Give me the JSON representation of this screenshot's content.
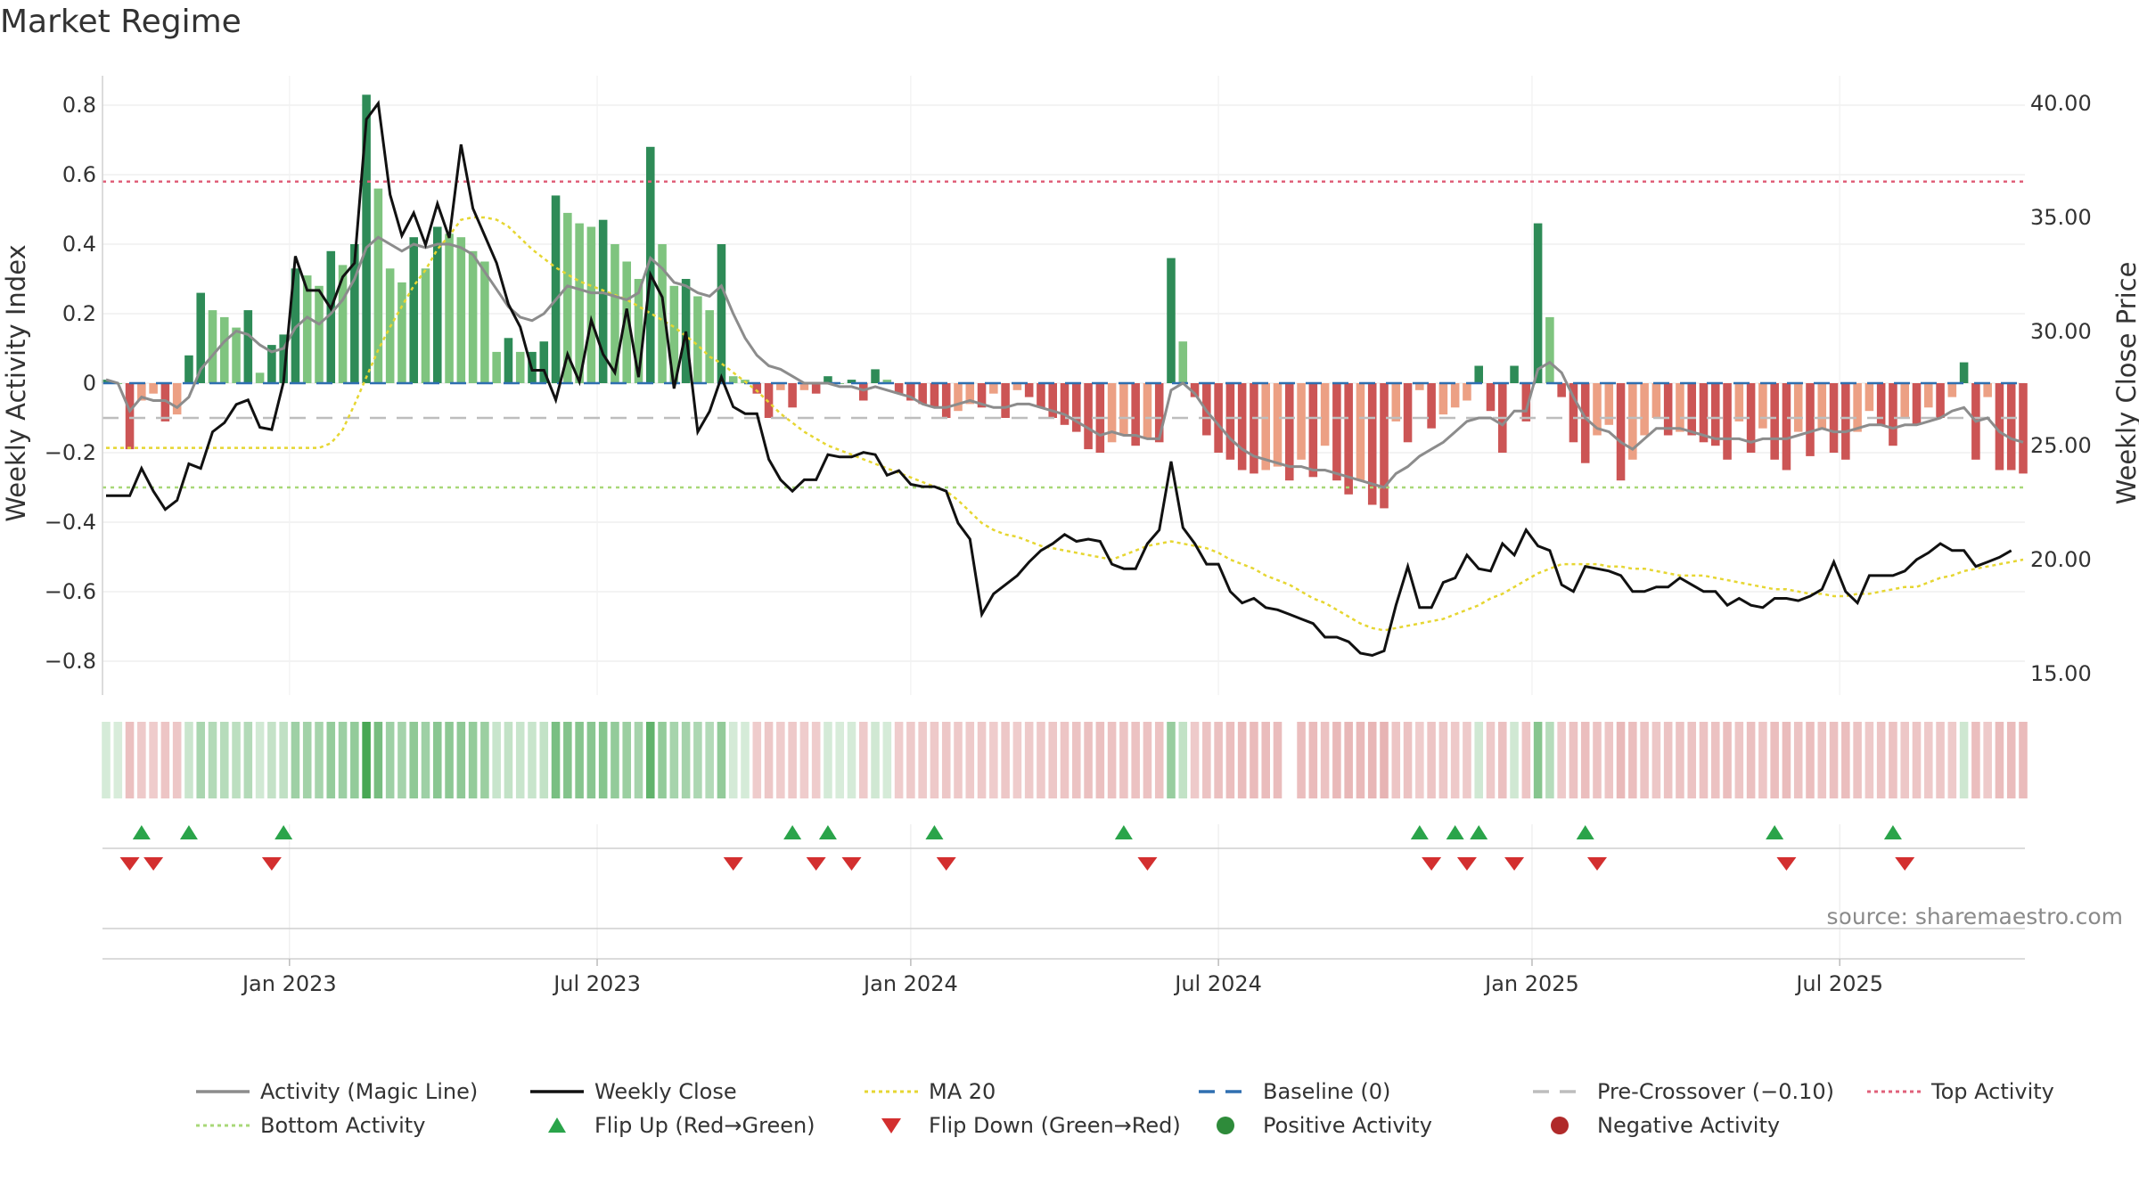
{
  "title": "Market Regime",
  "source": "source: sharemaestro.com",
  "chart_data": {
    "type": "bar",
    "ylabel_left": "Weekly Activity Index",
    "ylabel_right": "Weekly Close Price",
    "y_left_ticks": [
      "0.8",
      "0.6",
      "0.4",
      "0.2",
      "0",
      "−0.2",
      "−0.4",
      "−0.6",
      "−0.8"
    ],
    "y_left_values": [
      0.8,
      0.6,
      0.4,
      0.2,
      0,
      -0.2,
      -0.4,
      -0.6,
      -0.8
    ],
    "y_right_ticks": [
      "40.00",
      "35.00",
      "30.00",
      "25.00",
      "20.00",
      "15.00"
    ],
    "y_right_values": [
      40,
      35,
      30,
      25,
      20,
      15
    ],
    "x_ticks": [
      "Jan 2023",
      "Jul 2023",
      "Jan 2024",
      "Jul 2024",
      "Jan 2025",
      "Jul 2025"
    ],
    "x_tick_weeks": [
      15.5,
      41.5,
      68,
      94,
      120.5,
      146.5
    ],
    "levels": {
      "top": 0.58,
      "pre_crossover": -0.1,
      "bottom": -0.3
    },
    "activity": [
      0.01,
      0.0,
      -0.19,
      -0.05,
      -0.03,
      -0.11,
      -0.09,
      0.08,
      0.26,
      0.21,
      0.19,
      0.16,
      0.21,
      0.03,
      0.11,
      0.14,
      0.33,
      0.31,
      0.28,
      0.38,
      0.34,
      0.4,
      0.83,
      0.56,
      0.33,
      0.29,
      0.42,
      0.33,
      0.45,
      0.43,
      0.42,
      0.38,
      0.35,
      0.09,
      0.13,
      0.09,
      0.09,
      0.12,
      0.54,
      0.49,
      0.46,
      0.45,
      0.47,
      0.4,
      0.35,
      0.3,
      0.68,
      0.4,
      0.28,
      0.3,
      0.25,
      0.21,
      0.4,
      0.02,
      0.01,
      -0.03,
      -0.1,
      -0.02,
      -0.07,
      -0.02,
      -0.03,
      0.02,
      0.0,
      0.01,
      -0.05,
      0.04,
      0.01,
      -0.03,
      -0.05,
      -0.06,
      -0.07,
      -0.1,
      -0.08,
      -0.06,
      -0.07,
      -0.03,
      -0.1,
      -0.02,
      -0.04,
      -0.07,
      -0.1,
      -0.12,
      -0.14,
      -0.19,
      -0.2,
      -0.17,
      -0.15,
      -0.18,
      -0.16,
      -0.17,
      0.36,
      0.12,
      -0.04,
      -0.15,
      -0.2,
      -0.22,
      -0.25,
      -0.26,
      -0.25,
      -0.24,
      -0.28,
      -0.22,
      -0.27,
      -0.18,
      -0.28,
      -0.32,
      -0.28,
      -0.35,
      -0.36,
      -0.11,
      -0.17,
      -0.02,
      -0.13,
      -0.09,
      -0.07,
      -0.05,
      0.05,
      -0.08,
      -0.2,
      0.05,
      -0.11,
      0.46,
      0.19,
      -0.04,
      -0.17,
      -0.23,
      -0.15,
      -0.12,
      -0.28,
      -0.22,
      -0.15,
      -0.1,
      -0.15,
      -0.14,
      -0.15,
      -0.17,
      -0.18,
      -0.22,
      -0.11,
      -0.2,
      -0.13,
      -0.22,
      -0.25,
      -0.14,
      -0.21,
      -0.13,
      -0.2,
      -0.22,
      -0.14,
      -0.08,
      -0.12,
      -0.18,
      -0.1,
      -0.12,
      -0.07,
      -0.1,
      -0.04,
      0.06,
      -0.22,
      -0.04,
      -0.25,
      -0.25,
      -0.26
    ],
    "magic_line": [
      0.01,
      0.0,
      -0.08,
      -0.04,
      -0.05,
      -0.05,
      -0.07,
      -0.04,
      0.04,
      0.08,
      0.12,
      0.15,
      0.14,
      0.11,
      0.09,
      0.1,
      0.16,
      0.19,
      0.17,
      0.2,
      0.24,
      0.3,
      0.39,
      0.42,
      0.4,
      0.38,
      0.4,
      0.39,
      0.4,
      0.4,
      0.39,
      0.37,
      0.32,
      0.27,
      0.22,
      0.19,
      0.18,
      0.2,
      0.24,
      0.28,
      0.27,
      0.26,
      0.26,
      0.25,
      0.24,
      0.26,
      0.36,
      0.33,
      0.29,
      0.28,
      0.26,
      0.25,
      0.28,
      0.2,
      0.13,
      0.08,
      0.05,
      0.04,
      0.02,
      0.0,
      0.0,
      0.0,
      -0.01,
      -0.01,
      -0.02,
      -0.01,
      -0.02,
      -0.03,
      -0.04,
      -0.06,
      -0.07,
      -0.07,
      -0.06,
      -0.05,
      -0.06,
      -0.07,
      -0.07,
      -0.06,
      -0.06,
      -0.07,
      -0.08,
      -0.09,
      -0.11,
      -0.13,
      -0.15,
      -0.14,
      -0.15,
      -0.15,
      -0.16,
      -0.16,
      -0.02,
      0.0,
      -0.03,
      -0.08,
      -0.12,
      -0.16,
      -0.19,
      -0.21,
      -0.22,
      -0.23,
      -0.24,
      -0.24,
      -0.25,
      -0.25,
      -0.26,
      -0.27,
      -0.28,
      -0.29,
      -0.3,
      -0.26,
      -0.24,
      -0.21,
      -0.19,
      -0.17,
      -0.14,
      -0.11,
      -0.1,
      -0.1,
      -0.12,
      -0.08,
      -0.08,
      0.04,
      0.06,
      0.03,
      -0.04,
      -0.1,
      -0.13,
      -0.14,
      -0.17,
      -0.19,
      -0.16,
      -0.13,
      -0.13,
      -0.13,
      -0.14,
      -0.15,
      -0.16,
      -0.16,
      -0.16,
      -0.17,
      -0.16,
      -0.16,
      -0.16,
      -0.15,
      -0.14,
      -0.13,
      -0.14,
      -0.14,
      -0.13,
      -0.12,
      -0.12,
      -0.13,
      -0.12,
      -0.12,
      -0.11,
      -0.1,
      -0.08,
      -0.07,
      -0.11,
      -0.1,
      -0.14,
      -0.16,
      -0.17
    ],
    "weekly_close": [
      22.8,
      22.8,
      22.8,
      24.0,
      23.0,
      22.2,
      22.6,
      24.2,
      24.0,
      25.6,
      26.0,
      26.8,
      27.0,
      25.8,
      25.7,
      27.8,
      33.3,
      31.8,
      31.8,
      31.0,
      32.4,
      33.0,
      39.3,
      40.0,
      36.0,
      34.2,
      35.2,
      33.8,
      35.6,
      34.1,
      38.2,
      35.4,
      34.2,
      33.0,
      31.2,
      30.2,
      28.3,
      28.3,
      27.0,
      29.0,
      27.8,
      30.5,
      29.0,
      28.2,
      31.0,
      28.0,
      32.5,
      31.5,
      27.5,
      30.0,
      25.6,
      26.5,
      28.0,
      26.7,
      26.4,
      26.4,
      24.4,
      23.5,
      23.0,
      23.5,
      23.5,
      24.6,
      24.5,
      24.5,
      24.7,
      24.6,
      23.7,
      23.9,
      23.3,
      23.2,
      23.2,
      23.0,
      21.6,
      20.9,
      17.6,
      18.5,
      18.9,
      19.3,
      19.9,
      20.4,
      20.7,
      21.1,
      20.8,
      20.9,
      20.8,
      19.8,
      19.6,
      19.6,
      20.7,
      21.3,
      24.3,
      21.4,
      20.7,
      19.8,
      19.8,
      18.6,
      18.1,
      18.3,
      17.9,
      17.8,
      17.6,
      17.4,
      17.2,
      16.6,
      16.6,
      16.4,
      15.9,
      15.8,
      16.0,
      18.0,
      19.7,
      17.9,
      17.9,
      19.0,
      19.2,
      20.2,
      19.6,
      19.5,
      20.7,
      20.2,
      21.3,
      20.6,
      20.4,
      18.9,
      18.6,
      19.7,
      19.6,
      19.5,
      19.3,
      18.6,
      18.6,
      18.8,
      18.8,
      19.2,
      18.9,
      18.6,
      18.6,
      18.0,
      18.3,
      18.0,
      17.9,
      18.3,
      18.3,
      18.2,
      18.4,
      18.7,
      19.9,
      18.6,
      18.1,
      19.3,
      19.3,
      19.3,
      19.5,
      20.0,
      20.3,
      20.7,
      20.4,
      20.4,
      19.7,
      19.9,
      20.1,
      20.4
    ],
    "ma20": [
      24.9,
      24.9,
      24.9,
      24.9,
      24.9,
      24.9,
      24.9,
      24.9,
      24.9,
      24.9,
      24.9,
      24.9,
      24.9,
      24.9,
      24.9,
      24.9,
      24.9,
      24.9,
      24.9,
      25.1,
      25.7,
      26.8,
      28.0,
      29.2,
      30.2,
      31.1,
      32.0,
      32.7,
      33.6,
      34.2,
      34.9,
      35.0,
      35.0,
      34.9,
      34.6,
      34.1,
      33.6,
      33.2,
      32.8,
      32.5,
      32.2,
      32.0,
      31.8,
      31.6,
      31.4,
      31.1,
      30.8,
      30.5,
      30.2,
      29.8,
      29.4,
      28.9,
      28.6,
      28.2,
      27.8,
      27.4,
      26.9,
      26.4,
      26.0,
      25.6,
      25.3,
      25.0,
      24.8,
      24.6,
      24.4,
      24.2,
      24.0,
      23.8,
      23.6,
      23.4,
      23.2,
      23.0,
      22.6,
      22.1,
      21.6,
      21.3,
      21.1,
      21.0,
      20.8,
      20.6,
      20.5,
      20.4,
      20.3,
      20.2,
      20.1,
      20.0,
      20.2,
      20.4,
      20.6,
      20.7,
      20.8,
      20.7,
      20.6,
      20.5,
      20.3,
      20.0,
      19.8,
      19.6,
      19.3,
      19.1,
      18.9,
      18.6,
      18.3,
      18.1,
      17.8,
      17.5,
      17.2,
      17.0,
      16.9,
      17.0,
      17.1,
      17.2,
      17.3,
      17.4,
      17.6,
      17.8,
      18.0,
      18.3,
      18.5,
      18.8,
      19.1,
      19.4,
      19.6,
      19.8,
      19.8,
      19.8,
      19.8,
      19.7,
      19.7,
      19.6,
      19.6,
      19.5,
      19.4,
      19.3,
      19.3,
      19.3,
      19.2,
      19.1,
      19.0,
      18.9,
      18.8,
      18.7,
      18.7,
      18.6,
      18.5,
      18.5,
      18.4,
      18.4,
      18.5,
      18.5,
      18.6,
      18.7,
      18.8,
      18.8,
      19.0,
      19.2,
      19.3,
      19.5,
      19.6,
      19.7,
      19.8,
      19.9,
      20.0
    ],
    "flip_up_weeks": [
      3,
      7,
      15,
      58,
      61,
      70,
      86,
      111,
      114,
      116,
      125,
      141,
      151
    ],
    "flip_down_weeks": [
      2,
      4,
      14,
      53,
      60,
      63,
      71,
      88,
      112,
      115,
      119,
      126,
      142,
      152
    ],
    "legend": [
      {
        "label": "Activity (Magic Line)",
        "kind": "line",
        "color": "#8c8c8c"
      },
      {
        "label": "Weekly Close",
        "kind": "line",
        "color": "#111111"
      },
      {
        "label": "MA 20",
        "kind": "dotted",
        "color": "#e6d632"
      },
      {
        "label": "Baseline (0)",
        "kind": "dashed",
        "color": "#2f6fb0"
      },
      {
        "label": "Pre-Crossover (−0.10)",
        "kind": "dashed",
        "color": "#bdbdbd"
      },
      {
        "label": "Top Activity",
        "kind": "dotted",
        "color": "#e0607a"
      },
      {
        "label": "Bottom Activity",
        "kind": "dotted",
        "color": "#a8d878"
      },
      {
        "label": "Flip Up (Red→Green)",
        "kind": "tri-up",
        "color": "#2aa44a"
      },
      {
        "label": "Flip Down (Green→Red)",
        "kind": "tri-down",
        "color": "#d32f2f"
      },
      {
        "label": "Positive Activity",
        "kind": "dot",
        "color": "#2e8b3a"
      },
      {
        "label": "Negative Activity",
        "kind": "dot",
        "color": "#b02a2a"
      }
    ],
    "colors": {
      "pos_strong": "#2e8b57",
      "pos_light": "#7fc47f",
      "neg_strong": "#cc5555",
      "neg_light": "#eca084",
      "magic_line": "#8c8c8c",
      "close": "#111111",
      "ma20": "#e6d632",
      "baseline": "#2f6fb0",
      "pre": "#bdbdbd",
      "top": "#e0607a",
      "bottom": "#a8d878",
      "flip_up": "#2aa44a",
      "flip_down": "#d32f2f"
    }
  }
}
